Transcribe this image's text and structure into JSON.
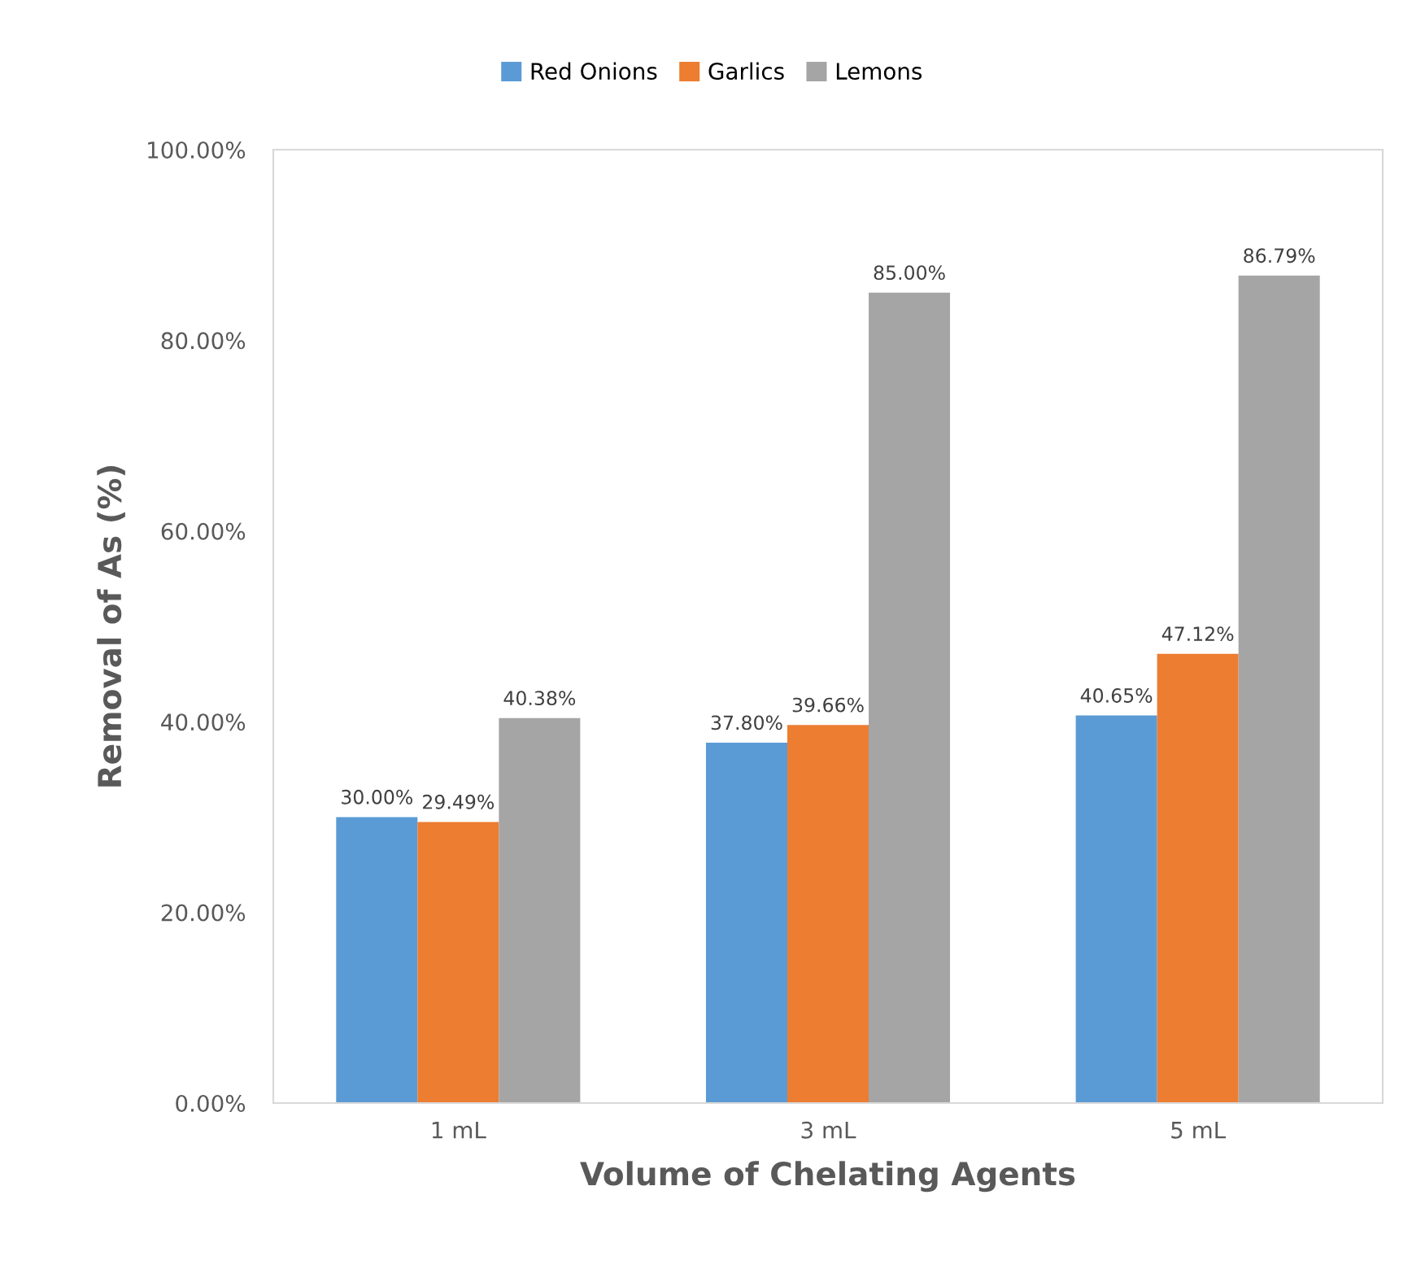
{
  "chart_data": {
    "type": "bar",
    "xlabel": "Volume of Chelating Agents",
    "ylabel": "Removal of As (%)",
    "categories": [
      "1 mL",
      "3 mL",
      "5 mL"
    ],
    "series": [
      {
        "name": "Red Onions",
        "color": "#5b9bd5",
        "values": [
          30.0,
          37.8,
          40.65
        ],
        "value_labels": [
          "30.00%",
          "37.80%",
          "40.65%"
        ]
      },
      {
        "name": "Garlics",
        "color": "#ed7d31",
        "values": [
          29.49,
          39.66,
          47.12
        ],
        "value_labels": [
          "29.49%",
          "39.66%",
          "47.12%"
        ]
      },
      {
        "name": "Lemons",
        "color": "#a5a5a5",
        "values": [
          40.38,
          85.0,
          86.79
        ],
        "value_labels": [
          "40.38%",
          "85.00%",
          "86.79%"
        ]
      }
    ],
    "ylim": [
      0,
      100
    ],
    "yticks": [
      {
        "value": 0,
        "label": "0.00%"
      },
      {
        "value": 20,
        "label": "20.00%"
      },
      {
        "value": 40,
        "label": "40.00%"
      },
      {
        "value": 60,
        "label": "60.00%"
      },
      {
        "value": 80,
        "label": "80.00%"
      },
      {
        "value": 100,
        "label": "100.00%"
      }
    ],
    "legend": "top",
    "grid": false
  }
}
